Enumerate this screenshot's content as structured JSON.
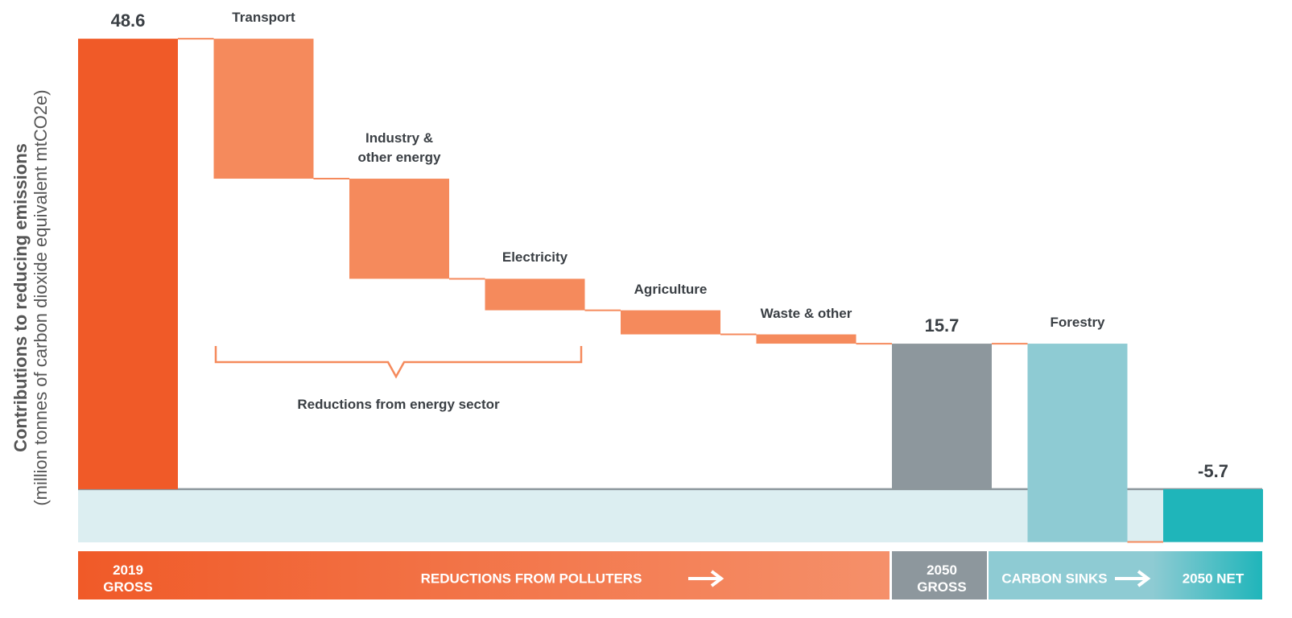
{
  "chart_data": {
    "type": "waterfall",
    "y_label": "Contributions to reducing emissions",
    "y_sublabel": "(million tonnes of carbon dioxide equivalent mtCO2e)",
    "categories": [
      "2019 GROSS",
      "Transport",
      "Industry & other energy",
      "Electricity",
      "Agriculture",
      "Waste & other",
      "2050 GROSS",
      "Forestry",
      "2050 NET"
    ],
    "values": [
      48.6,
      -15.1,
      -10.8,
      -3.4,
      -2.6,
      -1.0,
      15.7,
      -21.4,
      -5.7
    ],
    "measure": [
      "absolute",
      "relative",
      "relative",
      "relative",
      "relative",
      "relative",
      "absolute",
      "relative",
      "absolute"
    ],
    "colors": [
      "#f05a28",
      "#f58a5c",
      "#f58a5c",
      "#f58a5c",
      "#f58a5c",
      "#f58a5c",
      "#8d979d",
      "#8ecbd3",
      "#1fb5ba"
    ],
    "ylim": [
      -6,
      50
    ],
    "annotation": "Reductions from energy sector",
    "bands": [
      {
        "label": "REDUCTIONS FROM POLLUTERS"
      },
      {
        "label": "CARBON SINKS"
      }
    ]
  }
}
